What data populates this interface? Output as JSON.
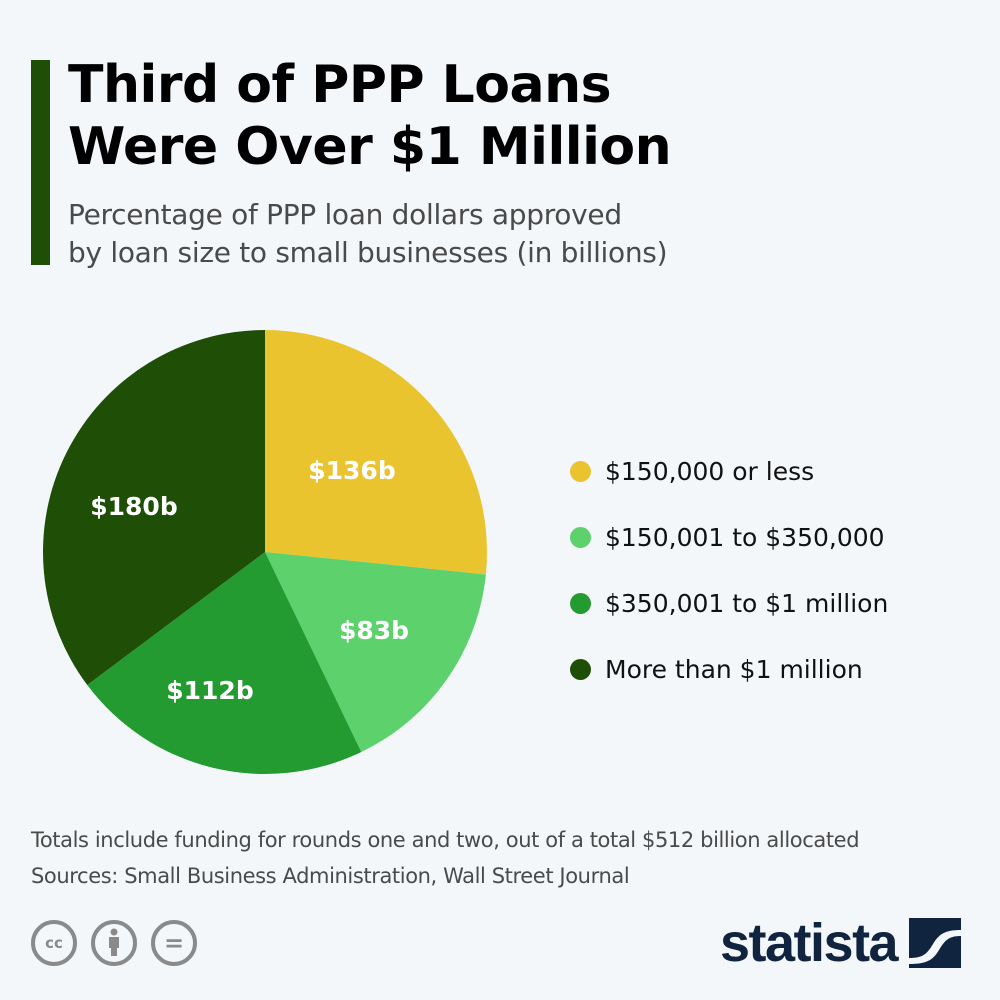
{
  "header": {
    "title_line1": "Third of PPP Loans",
    "title_line2": "Were Over $1 Million",
    "subtitle_line1": "Percentage of PPP loan dollars approved",
    "subtitle_line2": "by loan size to small businesses (in billions)",
    "accent_color": "#1f4e06"
  },
  "chart_data": {
    "type": "pie",
    "title": "Third of PPP Loans Were Over $1 Million",
    "subtitle": "Percentage of PPP loan dollars approved by loan size to small businesses (in billions)",
    "categories": [
      "$150,000 or less",
      "$150,001 to $350,000",
      "$350,001 to $1 million",
      "More than $1 million"
    ],
    "values": [
      136,
      83,
      112,
      180
    ],
    "unit": "billion USD",
    "data_labels": [
      "$136b",
      "$83b",
      "$112b",
      "$180b"
    ],
    "colors": [
      "#eac42f",
      "#5dd16b",
      "#249b30",
      "#1f4e06"
    ],
    "start_angle_deg": 0,
    "direction": "clockwise",
    "legend_position": "right"
  },
  "legend": {
    "items": [
      {
        "label": "$150,000 or less",
        "color": "#eac42f"
      },
      {
        "label": "$150,001 to $350,000",
        "color": "#5dd16b"
      },
      {
        "label": "$350,001 to $1 million",
        "color": "#249b30"
      },
      {
        "label": "More than $1 million",
        "color": "#1f4e06"
      }
    ]
  },
  "footer": {
    "note": "Totals include funding for rounds one and two, out of a total $512 billion allocated",
    "sources": "Sources: Small Business Administration, Wall Street Journal",
    "license_icons": [
      "cc",
      "by",
      "nd"
    ],
    "cc_label": "cc",
    "nd_label": "=",
    "brand": "statista"
  }
}
